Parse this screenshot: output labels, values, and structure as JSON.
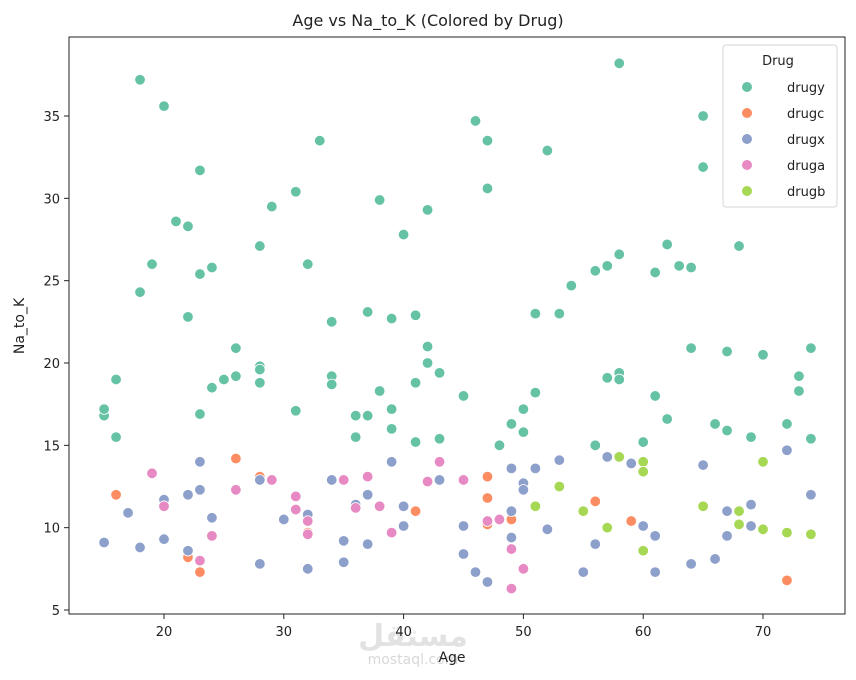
{
  "chart_data": {
    "type": "scatter",
    "title": "Age vs Na_to_K (Colored by Drug)",
    "xlabel": "Age",
    "ylabel": "Na_to_K",
    "xlim": [
      12,
      77
    ],
    "ylim": [
      4.8,
      38.8
    ],
    "xticks": [
      20,
      30,
      40,
      50,
      60,
      70
    ],
    "yticks": [
      5,
      10,
      15,
      20,
      25,
      30,
      35
    ],
    "grid": false,
    "legend": {
      "title": "Drug",
      "position": "upper right",
      "entries": [
        "drugy",
        "drugc",
        "drugx",
        "druga",
        "drugb"
      ]
    },
    "colors": {
      "drugy": "#66c2a5",
      "drugc": "#fc8d62",
      "drugx": "#8da0cb",
      "druga": "#e78ac3",
      "drugb": "#a6d854"
    },
    "series": [
      {
        "name": "drugy",
        "points": [
          [
            15,
            16.8
          ],
          [
            15,
            17.2
          ],
          [
            16,
            19.0
          ],
          [
            16,
            15.5
          ],
          [
            18,
            37.2
          ],
          [
            18,
            24.3
          ],
          [
            19,
            26.0
          ],
          [
            20,
            35.6
          ],
          [
            21,
            28.6
          ],
          [
            22,
            28.3
          ],
          [
            22,
            22.8
          ],
          [
            23,
            31.7
          ],
          [
            23,
            25.4
          ],
          [
            23,
            16.9
          ],
          [
            24,
            25.8
          ],
          [
            24,
            18.5
          ],
          [
            25,
            19.0
          ],
          [
            26,
            19.2
          ],
          [
            26,
            20.9
          ],
          [
            28,
            27.1
          ],
          [
            28,
            19.8
          ],
          [
            28,
            19.6
          ],
          [
            28,
            18.8
          ],
          [
            29,
            29.5
          ],
          [
            31,
            30.4
          ],
          [
            31,
            17.1
          ],
          [
            32,
            26.0
          ],
          [
            33,
            33.5
          ],
          [
            34,
            22.5
          ],
          [
            34,
            19.2
          ],
          [
            34,
            18.7
          ],
          [
            36,
            16.8
          ],
          [
            36,
            15.5
          ],
          [
            37,
            23.1
          ],
          [
            37,
            16.8
          ],
          [
            38,
            29.9
          ],
          [
            38,
            18.3
          ],
          [
            39,
            22.7
          ],
          [
            39,
            17.2
          ],
          [
            39,
            16.0
          ],
          [
            40,
            27.8
          ],
          [
            41,
            22.9
          ],
          [
            41,
            18.8
          ],
          [
            41,
            15.2
          ],
          [
            42,
            29.3
          ],
          [
            42,
            21.0
          ],
          [
            42,
            20.0
          ],
          [
            43,
            19.4
          ],
          [
            43,
            15.4
          ],
          [
            45,
            18.0
          ],
          [
            46,
            34.7
          ],
          [
            47,
            33.5
          ],
          [
            47,
            30.6
          ],
          [
            48,
            15.0
          ],
          [
            49,
            16.3
          ],
          [
            50,
            17.2
          ],
          [
            50,
            15.8
          ],
          [
            51,
            23.0
          ],
          [
            51,
            18.2
          ],
          [
            52,
            32.9
          ],
          [
            53,
            23.0
          ],
          [
            54,
            24.7
          ],
          [
            56,
            25.6
          ],
          [
            56,
            15.0
          ],
          [
            57,
            25.9
          ],
          [
            57,
            19.1
          ],
          [
            58,
            38.2
          ],
          [
            58,
            26.6
          ],
          [
            58,
            19.4
          ],
          [
            58,
            19.0
          ],
          [
            60,
            15.2
          ],
          [
            61,
            25.5
          ],
          [
            61,
            18.0
          ],
          [
            62,
            27.2
          ],
          [
            62,
            16.6
          ],
          [
            63,
            25.9
          ],
          [
            64,
            25.8
          ],
          [
            64,
            20.9
          ],
          [
            65,
            35.0
          ],
          [
            65,
            31.9
          ],
          [
            66,
            16.3
          ],
          [
            67,
            20.7
          ],
          [
            67,
            15.9
          ],
          [
            68,
            27.1
          ],
          [
            69,
            15.5
          ],
          [
            70,
            20.5
          ],
          [
            72,
            16.3
          ],
          [
            73,
            19.2
          ],
          [
            73,
            18.3
          ],
          [
            74,
            20.9
          ],
          [
            74,
            15.4
          ]
        ]
      },
      {
        "name": "drugc",
        "points": [
          [
            16,
            12.0
          ],
          [
            22,
            8.2
          ],
          [
            23,
            7.3
          ],
          [
            26,
            14.2
          ],
          [
            28,
            13.1
          ],
          [
            32,
            9.7
          ],
          [
            41,
            11.0
          ],
          [
            47,
            13.1
          ],
          [
            47,
            11.8
          ],
          [
            47,
            10.2
          ],
          [
            49,
            10.5
          ],
          [
            56,
            11.6
          ],
          [
            59,
            10.4
          ],
          [
            72,
            6.8
          ]
        ]
      },
      {
        "name": "drugx",
        "points": [
          [
            15,
            9.1
          ],
          [
            17,
            10.9
          ],
          [
            18,
            8.8
          ],
          [
            20,
            11.7
          ],
          [
            20,
            9.3
          ],
          [
            22,
            12.0
          ],
          [
            22,
            8.6
          ],
          [
            23,
            14.0
          ],
          [
            23,
            12.3
          ],
          [
            24,
            10.6
          ],
          [
            28,
            12.9
          ],
          [
            28,
            7.8
          ],
          [
            30,
            10.5
          ],
          [
            32,
            10.8
          ],
          [
            32,
            7.5
          ],
          [
            34,
            12.9
          ],
          [
            35,
            9.2
          ],
          [
            35,
            7.9
          ],
          [
            36,
            11.4
          ],
          [
            37,
            12.0
          ],
          [
            37,
            9.0
          ],
          [
            39,
            14.0
          ],
          [
            40,
            11.3
          ],
          [
            40,
            10.1
          ],
          [
            43,
            12.9
          ],
          [
            45,
            10.1
          ],
          [
            45,
            8.4
          ],
          [
            46,
            7.3
          ],
          [
            47,
            6.7
          ],
          [
            49,
            13.6
          ],
          [
            49,
            11.0
          ],
          [
            49,
            9.4
          ],
          [
            50,
            12.7
          ],
          [
            50,
            12.3
          ],
          [
            51,
            13.6
          ],
          [
            52,
            9.9
          ],
          [
            53,
            14.1
          ],
          [
            55,
            7.3
          ],
          [
            56,
            9.0
          ],
          [
            57,
            14.3
          ],
          [
            59,
            13.9
          ],
          [
            60,
            10.1
          ],
          [
            61,
            9.5
          ],
          [
            61,
            7.3
          ],
          [
            64,
            7.8
          ],
          [
            65,
            13.8
          ],
          [
            66,
            8.1
          ],
          [
            67,
            11.0
          ],
          [
            67,
            9.5
          ],
          [
            69,
            11.4
          ],
          [
            69,
            10.1
          ],
          [
            72,
            14.7
          ],
          [
            74,
            12.0
          ]
        ]
      },
      {
        "name": "druga",
        "points": [
          [
            19,
            13.3
          ],
          [
            20,
            11.3
          ],
          [
            23,
            8.0
          ],
          [
            24,
            9.5
          ],
          [
            26,
            12.3
          ],
          [
            29,
            12.9
          ],
          [
            31,
            11.9
          ],
          [
            31,
            11.1
          ],
          [
            32,
            10.4
          ],
          [
            32,
            9.6
          ],
          [
            35,
            12.9
          ],
          [
            36,
            11.2
          ],
          [
            37,
            13.1
          ],
          [
            38,
            11.3
          ],
          [
            39,
            9.7
          ],
          [
            42,
            12.8
          ],
          [
            43,
            14.0
          ],
          [
            45,
            12.9
          ],
          [
            47,
            10.4
          ],
          [
            48,
            10.5
          ],
          [
            49,
            8.7
          ],
          [
            49,
            6.3
          ],
          [
            50,
            7.5
          ]
        ]
      },
      {
        "name": "drugb",
        "points": [
          [
            51,
            11.3
          ],
          [
            53,
            12.5
          ],
          [
            55,
            11.0
          ],
          [
            57,
            10.0
          ],
          [
            58,
            14.3
          ],
          [
            60,
            14.0
          ],
          [
            60,
            13.4
          ],
          [
            60,
            8.6
          ],
          [
            65,
            11.3
          ],
          [
            68,
            11.0
          ],
          [
            68,
            10.2
          ],
          [
            70,
            14.0
          ],
          [
            70,
            9.9
          ],
          [
            72,
            9.7
          ],
          [
            74,
            9.6
          ]
        ]
      }
    ]
  },
  "watermark": {
    "arabic": "مستقل",
    "latin": "mostaql.com"
  }
}
